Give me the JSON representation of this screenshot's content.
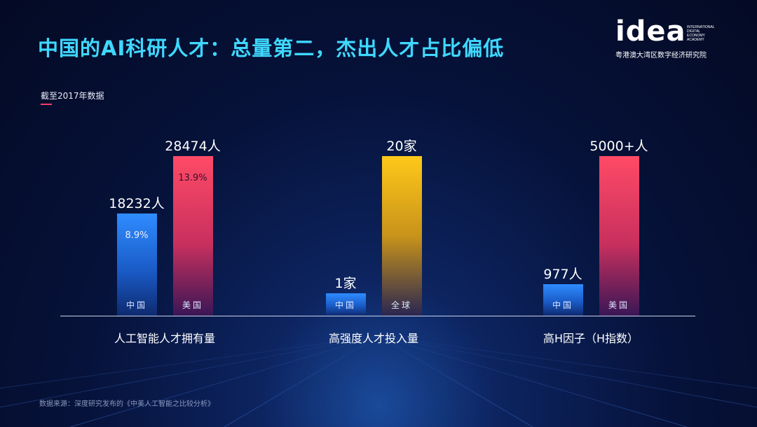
{
  "title": "中国的AI科研人才：总量第二，杰出人才占比偏低",
  "logo": {
    "word": "idea",
    "sub": "INTERNATIONAL\nDIGITAL\nECONOMY\nACADEMY",
    "cn": "粤港澳大湾区数字经济研究院"
  },
  "note": "截至2017年数据",
  "source": "数据来源：深度研究发布的《中美人工智能之比较分析》",
  "colors": {
    "title": "#3fd8ff",
    "china": "#2f8cff",
    "usa": "#ff4a66",
    "global": "#ffc81a",
    "accent": "#ff3b6b"
  },
  "chart_data": {
    "type": "bar",
    "groups": [
      {
        "label": "人工智能人才拥有量",
        "bars": [
          {
            "category": "中国",
            "value": 18232,
            "value_label": "18232人",
            "share": "8.9%",
            "color": "blue"
          },
          {
            "category": "美国",
            "value": 28474,
            "value_label": "28474人",
            "share": "13.9%",
            "color": "red"
          }
        ]
      },
      {
        "label": "高强度人才投入量",
        "bars": [
          {
            "category": "中国",
            "value": 1,
            "value_label": "1家",
            "color": "blue"
          },
          {
            "category": "全球",
            "value": 20,
            "value_label": "20家",
            "color": "yellow"
          }
        ]
      },
      {
        "label": "高H因子（H指数）",
        "bars": [
          {
            "category": "中国",
            "value": 977,
            "value_label": "977人",
            "color": "blue"
          },
          {
            "category": "美国",
            "value": 5000,
            "value_label": "5000+人",
            "color": "red"
          }
        ]
      }
    ]
  }
}
